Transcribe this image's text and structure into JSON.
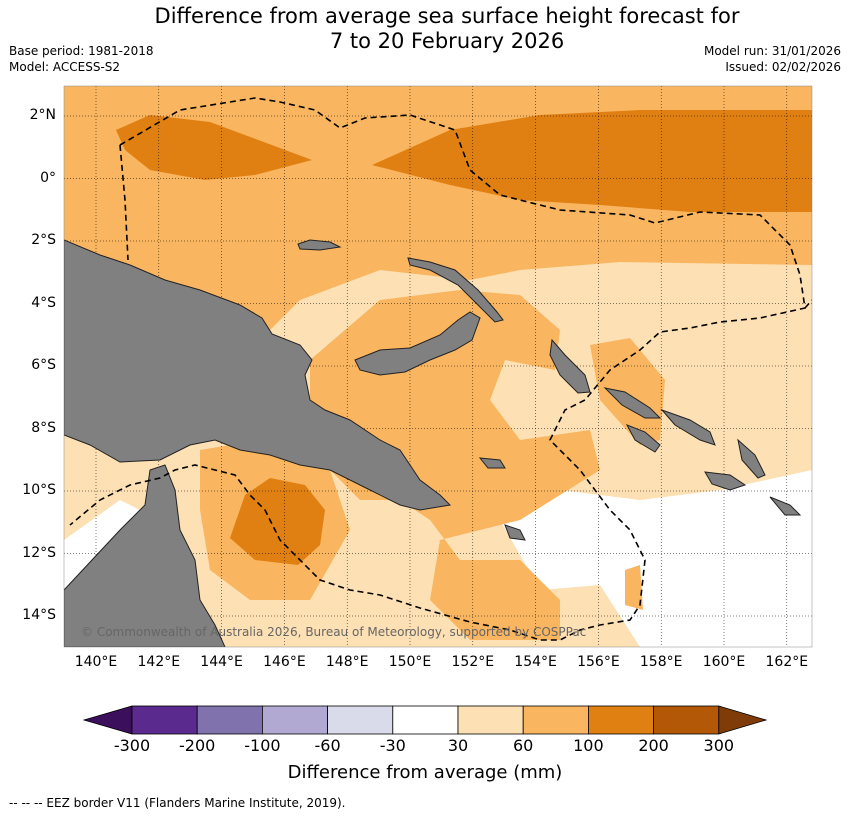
{
  "title_line1": "Difference from average sea surface height forecast for",
  "title_line2": "7 to 20 February 2026",
  "base_period": "Base period: 1981-2018",
  "model": "Model: ACCESS-S2",
  "model_run": "Model run: 31/01/2026",
  "issued": "Issued: 02/02/2026",
  "lat_labels": [
    "2°N",
    "0°",
    "2°S",
    "4°S",
    "6°S",
    "8°S",
    "10°S",
    "12°S",
    "14°S"
  ],
  "lon_labels": [
    "140°E",
    "142°E",
    "144°E",
    "146°E",
    "148°E",
    "150°E",
    "152°E",
    "154°E",
    "156°E",
    "158°E",
    "160°E",
    "162°E"
  ],
  "copyright": "© Commonwealth of Australia 2026, Bureau of Meteorology, supported by COSPPac",
  "colorbar": {
    "title": "Difference from average (mm)",
    "ticks": [
      "-300",
      "-200",
      "-100",
      "-60",
      "-30",
      "30",
      "60",
      "100",
      "200",
      "300"
    ],
    "colors": [
      "#3b0f5c",
      "#5b2a8e",
      "#8072ad",
      "#b1a9d2",
      "#d9dbea",
      "#ffffff",
      "#fde0b3",
      "#f9b55f",
      "#e08012",
      "#b35806",
      "#7f3b08"
    ]
  },
  "footnote": "-- -- -- EEZ border V11 (Flanders Marine Institute, 2019).",
  "colors": {
    "land": "#808080",
    "land_border": "#222222"
  }
}
